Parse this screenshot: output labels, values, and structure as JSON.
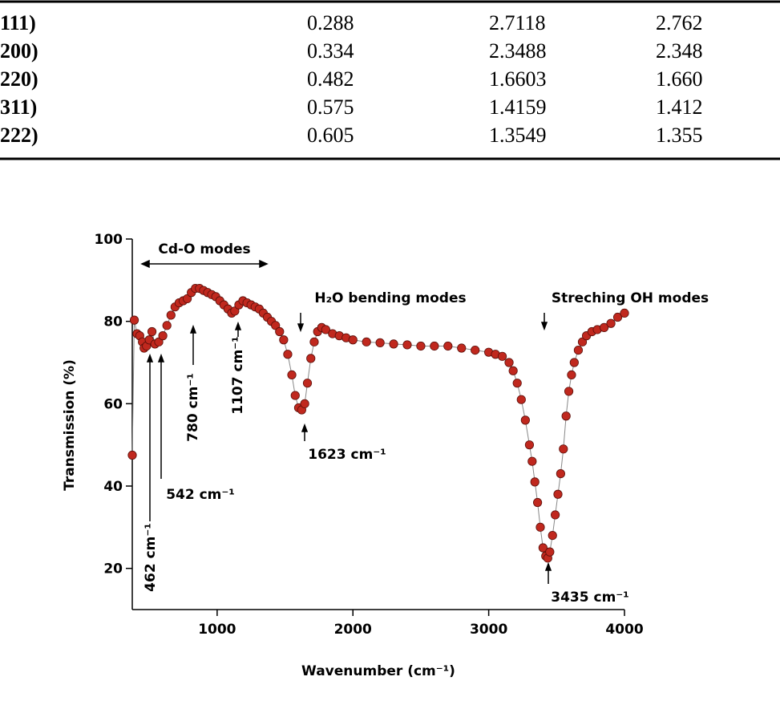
{
  "table": {
    "rows": [
      [
        "111)",
        "0.288",
        "2.7118",
        "2.762"
      ],
      [
        "200)",
        "0.334",
        "2.3488",
        "2.348"
      ],
      [
        "220)",
        "0.482",
        "1.6603",
        "1.660"
      ],
      [
        "311)",
        "0.575",
        "1.4159",
        "1.412"
      ],
      [
        "222)",
        "0.605",
        "1.3549",
        "1.355"
      ]
    ]
  },
  "chart_data": {
    "type": "line",
    "markers": true,
    "x_label": "Wavenumber (cm⁻¹)",
    "y_label": "Transmission (%)",
    "xlim": [
      375,
      4000
    ],
    "ylim": [
      10,
      100
    ],
    "xticks": [
      1000,
      2000,
      3000,
      4000
    ],
    "yticks": [
      20,
      40,
      60,
      80,
      100
    ],
    "color": "#c0281e",
    "line_color": "#888888",
    "annotations": [
      "Cd-O modes",
      "H₂O bending modes",
      "Streching OH modes",
      "462 cm⁻¹",
      "542 cm⁻¹",
      "780 cm⁻¹",
      "1107 cm⁻¹",
      "1623 cm⁻¹",
      "3435 cm⁻¹"
    ],
    "x": [
      375,
      390,
      410,
      430,
      450,
      462,
      480,
      500,
      520,
      542,
      570,
      600,
      630,
      660,
      690,
      720,
      750,
      780,
      810,
      840,
      870,
      900,
      930,
      960,
      990,
      1020,
      1050,
      1080,
      1107,
      1130,
      1160,
      1190,
      1220,
      1250,
      1280,
      1310,
      1340,
      1370,
      1400,
      1430,
      1460,
      1490,
      1520,
      1550,
      1575,
      1600,
      1623,
      1645,
      1665,
      1690,
      1715,
      1740,
      1770,
      1800,
      1850,
      1900,
      1950,
      2000,
      2100,
      2200,
      2300,
      2400,
      2500,
      2600,
      2700,
      2800,
      2900,
      3000,
      3050,
      3100,
      3150,
      3180,
      3210,
      3240,
      3270,
      3300,
      3320,
      3340,
      3360,
      3380,
      3400,
      3420,
      3435,
      3450,
      3470,
      3490,
      3510,
      3530,
      3550,
      3570,
      3590,
      3610,
      3630,
      3660,
      3690,
      3720,
      3760,
      3800,
      3850,
      3900,
      3950,
      4000
    ],
    "values": [
      47.5,
      80.3,
      77,
      76.5,
      75,
      73.5,
      74,
      75.5,
      77.5,
      74.5,
      75,
      76.5,
      79,
      81.5,
      83.5,
      84.5,
      85,
      85.5,
      87,
      88,
      88,
      87.5,
      87,
      86.5,
      86,
      85,
      84,
      83,
      82,
      82.5,
      84,
      85,
      84.5,
      84,
      83.5,
      83,
      82,
      81,
      80,
      79,
      77.5,
      75.5,
      72,
      67,
      62,
      59,
      58.5,
      60,
      65,
      71,
      75,
      77.5,
      78.5,
      78,
      77,
      76.5,
      76,
      75.5,
      75,
      74.8,
      74.5,
      74.3,
      74,
      74,
      74,
      73.5,
      73,
      72.5,
      72,
      71.5,
      70,
      68,
      65,
      61,
      56,
      50,
      46,
      41,
      36,
      30,
      25,
      23,
      22.5,
      24,
      28,
      33,
      38,
      43,
      49,
      57,
      63,
      67,
      70,
      73,
      75,
      76.5,
      77.5,
      78,
      78.5,
      79.5,
      81,
      82
    ]
  }
}
